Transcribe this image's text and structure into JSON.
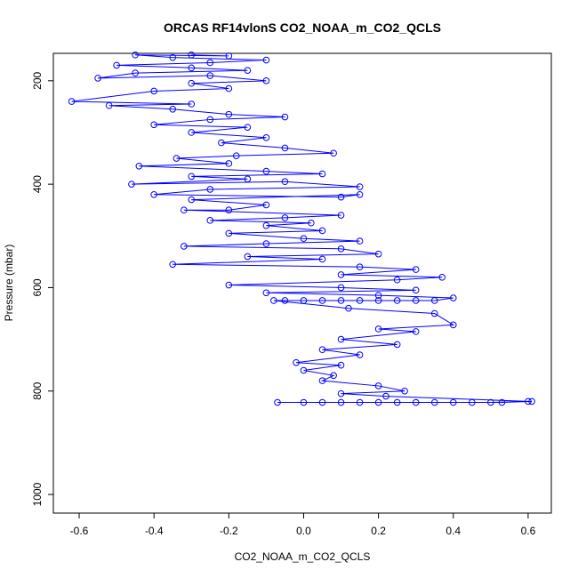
{
  "chart_data": {
    "type": "scatter",
    "title": "ORCAS RF14vlonS CO2_NOAA_m_CO2_QCLS",
    "x_label": "CO2_NOAA_m_CO2_QCLS",
    "y_label": "Pressure (mbar)",
    "color": "#0000ff",
    "connect": true,
    "xlim": [
      -0.669,
      0.662
    ],
    "ylim": [
      1036,
      147
    ],
    "xticks": [
      -0.6,
      -0.4,
      -0.2,
      {
        "value": 0,
        "label": "0.0"
      },
      0.2,
      0.4,
      0.6
    ],
    "yticks": [
      200,
      400,
      600,
      800,
      1000
    ],
    "x": [
      -0.3,
      -0.2,
      -0.45,
      -0.35,
      -0.1,
      -0.25,
      -0.5,
      -0.3,
      -0.15,
      -0.45,
      -0.55,
      -0.25,
      -0.1,
      -0.3,
      -0.2,
      -0.4,
      -0.62,
      -0.3,
      -0.52,
      -0.35,
      -0.2,
      -0.05,
      -0.25,
      -0.4,
      -0.15,
      -0.3,
      -0.1,
      -0.22,
      -0.05,
      0.08,
      -0.18,
      -0.34,
      -0.2,
      -0.44,
      -0.1,
      0.05,
      -0.3,
      -0.15,
      -0.46,
      -0.05,
      0.15,
      -0.25,
      -0.4,
      0.1,
      0.15,
      -0.3,
      -0.1,
      -0.2,
      -0.32,
      0.1,
      -0.05,
      -0.25,
      0.02,
      -0.1,
      0.05,
      -0.2,
      0,
      0.15,
      -0.1,
      -0.32,
      0.1,
      0.2,
      -0.15,
      0.05,
      -0.35,
      0.15,
      0.3,
      0.1,
      0.37,
      0.25,
      -0.2,
      0.1,
      0.3,
      -0.1,
      0.2,
      0.4,
      0.35,
      0.3,
      0.25,
      0.2,
      0.15,
      0.1,
      0.05,
      0,
      -0.05,
      -0.08,
      0.12,
      0.35,
      0.4,
      0.2,
      0.3,
      0.1,
      0.25,
      0.05,
      0.15,
      -0.02,
      0.1,
      0,
      0.08,
      0.05,
      0.2,
      0.27,
      0.1,
      0.22,
      0.6,
      0.5,
      0.45,
      0.4,
      0.35,
      0.3,
      0.25,
      0.2,
      0.15,
      0.1,
      0.05,
      0,
      -0.07,
      0.53,
      0.61
    ],
    "y": [
      150,
      152,
      150,
      155,
      160,
      165,
      170,
      175,
      180,
      185,
      195,
      190,
      200,
      205,
      215,
      220,
      240,
      245,
      248,
      255,
      265,
      270,
      275,
      285,
      290,
      300,
      310,
      320,
      330,
      340,
      345,
      350,
      360,
      365,
      375,
      380,
      385,
      390,
      400,
      395,
      405,
      410,
      420,
      425,
      420,
      430,
      440,
      450,
      450,
      460,
      465,
      470,
      475,
      480,
      490,
      495,
      505,
      510,
      515,
      520,
      525,
      535,
      540,
      545,
      555,
      560,
      565,
      575,
      580,
      585,
      595,
      600,
      605,
      610,
      615,
      620,
      625,
      625,
      625,
      625,
      625,
      625,
      625,
      625,
      625,
      625,
      640,
      650,
      672,
      680,
      685,
      700,
      710,
      720,
      730,
      745,
      750,
      760,
      770,
      780,
      790,
      800,
      805,
      810,
      820,
      822,
      822,
      822,
      822,
      822,
      822,
      822,
      822,
      822,
      822,
      822,
      822,
      822,
      820
    ]
  }
}
